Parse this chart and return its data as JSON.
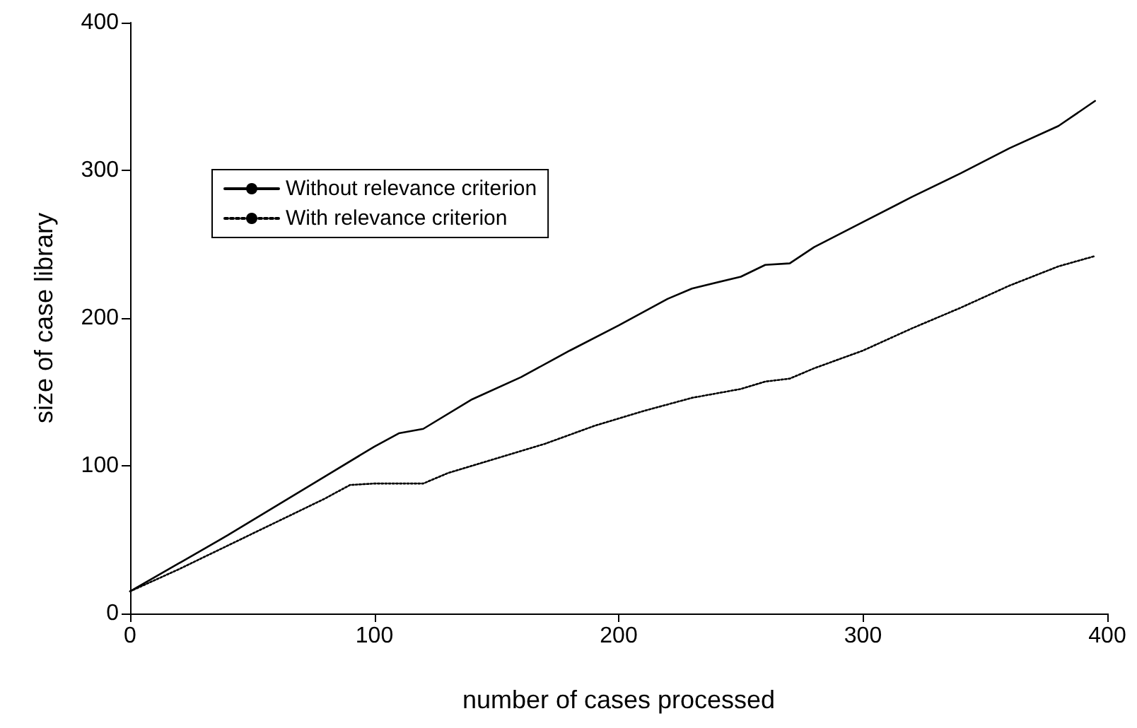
{
  "chart_data": {
    "type": "line",
    "xlabel": "number of cases processed",
    "ylabel": "size of case library",
    "xlim": [
      0,
      400
    ],
    "xticks": [
      0,
      100,
      200,
      300,
      400
    ],
    "ylim": [
      0,
      400
    ],
    "yticks": [
      0,
      100,
      200,
      300,
      400
    ],
    "grid": false,
    "legend": "top left",
    "marker": "none",
    "series": [
      {
        "name": "Without relevance criterion",
        "color": "#000000",
        "line_style": "solid",
        "x": [
          0,
          20,
          40,
          60,
          80,
          100,
          110,
          120,
          140,
          160,
          180,
          200,
          220,
          230,
          250,
          260,
          270,
          280,
          300,
          320,
          340,
          360,
          380,
          395
        ],
        "values": [
          15,
          34,
          53,
          73,
          93,
          113,
          122,
          125,
          145,
          160,
          178,
          195,
          213,
          220,
          228,
          236,
          237,
          248,
          265,
          282,
          298,
          315,
          330,
          347
        ]
      },
      {
        "name": "With relevance criterion",
        "color": "#000000",
        "line_style": "dotted",
        "x": [
          0,
          20,
          40,
          60,
          80,
          90,
          100,
          120,
          130,
          150,
          170,
          190,
          210,
          230,
          250,
          260,
          270,
          280,
          300,
          320,
          340,
          360,
          380,
          395
        ],
        "values": [
          15,
          30,
          46,
          62,
          78,
          87,
          88,
          88,
          95,
          105,
          115,
          127,
          137,
          146,
          152,
          157,
          159,
          166,
          178,
          193,
          207,
          222,
          235,
          242
        ]
      }
    ]
  }
}
